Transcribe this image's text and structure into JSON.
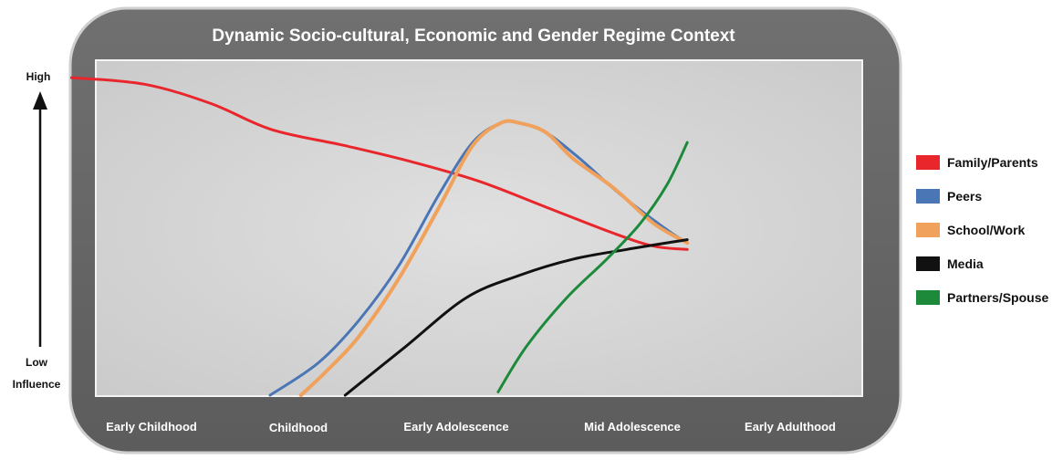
{
  "chart_data": {
    "type": "line",
    "title": "Dynamic Socio-cultural, Economic and Gender Regime Context",
    "y_axis": {
      "high_label": "High",
      "low_label": [
        "Low",
        "Influence"
      ]
    },
    "categories": [
      "Early Childhood",
      "Childhood",
      "Early Adolescence",
      "Mid Adolescence",
      "Early Adulthood"
    ],
    "x_range": [
      0,
      4.35
    ],
    "ylim": [
      0,
      100
    ],
    "grid": false,
    "legend_position": "right",
    "series": [
      {
        "name": "Family/Parents",
        "color": "#e8262b",
        "x": [
          -0.24,
          0.3,
          0.8,
          1.25,
          1.8,
          2.3,
          2.8,
          3.3,
          3.8,
          4.1,
          4.35
        ],
        "y": [
          98,
          96,
          90,
          82,
          77,
          72,
          66,
          58,
          50,
          46,
          45
        ]
      },
      {
        "name": "Peers",
        "color": "#4a76b5",
        "x": [
          1.24,
          1.6,
          1.9,
          2.2,
          2.5,
          2.75,
          2.96,
          3.1,
          3.3,
          3.55,
          3.85,
          4.2,
          4.35
        ],
        "y": [
          0,
          10,
          23,
          40,
          62,
          78,
          84,
          84,
          81,
          73,
          62,
          51,
          47
        ]
      },
      {
        "name": "School/Work",
        "color": "#f0a15c",
        "x": [
          1.47,
          1.65,
          1.9,
          2.2,
          2.5,
          2.75,
          2.96,
          3.1,
          3.3,
          3.5,
          3.8,
          4.1,
          4.35
        ],
        "y": [
          0,
          7,
          18,
          36,
          58,
          77,
          84,
          84,
          81,
          73,
          64,
          53,
          47
        ]
      },
      {
        "name": "Media",
        "color": "#111111",
        "x": [
          1.8,
          2.25,
          2.7,
          3.1,
          3.5,
          3.9,
          4.35
        ],
        "y": [
          0,
          15,
          30,
          37,
          42,
          45,
          48
        ]
      },
      {
        "name": "Partners/Spouse",
        "color": "#1d8a3b",
        "x": [
          2.94,
          3.15,
          3.45,
          3.75,
          4.0,
          4.2,
          4.35
        ],
        "y": [
          1,
          15,
          30,
          42,
          53,
          65,
          78
        ]
      }
    ]
  }
}
